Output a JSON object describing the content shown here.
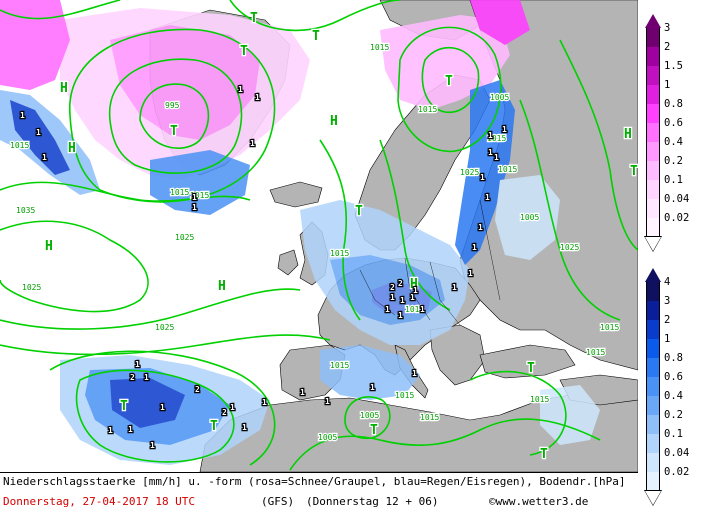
{
  "caption": {
    "description": "Niederschlagsstaerke [mm/h] u. -form (rosa=Schnee/Graupel, blau=Regen/Eisregen), Bodendr.[hPa]",
    "datetime": "Donnerstag, 27-04-2017  18 UTC",
    "model": "(GFS)",
    "run": "(Donnerstag 12 + 06)",
    "copyright": "©www.wetter3.de"
  },
  "snow_legend": {
    "levels": [
      "3",
      "2",
      "1.5",
      "1",
      "0.8",
      "0.6",
      "0.4",
      "0.2",
      "0.1",
      "0.04",
      "0.02"
    ],
    "colors": [
      "#700070",
      "#a000a0",
      "#c010c0",
      "#e020e0",
      "#ff40ff",
      "#ff70ff",
      "#ff99ff",
      "#ffbbff",
      "#ffd4ff",
      "#ffe8ff",
      "#fff4ff"
    ]
  },
  "rain_legend": {
    "levels": [
      "4",
      "3",
      "2",
      "1",
      "0.8",
      "0.6",
      "0.4",
      "0.2",
      "0.1",
      "0.04",
      "0.02"
    ],
    "colors": [
      "#101060",
      "#0a1e9a",
      "#0a3ccc",
      "#0a5aeb",
      "#2a78f2",
      "#4a92f5",
      "#6aa8f7",
      "#8ebff9",
      "#b0d4fb",
      "#cfe6fd",
      "#e6f2ff"
    ]
  },
  "map": {
    "colors": {
      "sea": "#ffffff",
      "land": "#b4b4b4",
      "isobar": "#00d000",
      "border": "#000000",
      "marker": "#00b000"
    },
    "pressure_labels": [
      "1015",
      "1015",
      "1015",
      "1015",
      "1015",
      "1015",
      "1015",
      "1015",
      "1015",
      "1015",
      "1015",
      "1015",
      "1015",
      "1025",
      "1025",
      "1025",
      "1025",
      "1025",
      "1035",
      "995",
      "1005",
      "1005",
      "1005",
      "1005",
      "1015",
      "1015"
    ],
    "markers": [
      "H",
      "H",
      "H",
      "H",
      "H",
      "H",
      "H",
      "T",
      "T",
      "T",
      "T",
      "T",
      "T",
      "T",
      "T",
      "T",
      "T",
      "T",
      "T"
    ],
    "precip_labels": [
      "1",
      "1",
      "1",
      "1",
      "1",
      "1",
      "1",
      "1",
      "1",
      "1",
      "1",
      "1",
      "1",
      "1",
      "1",
      "1",
      "1",
      "1",
      "1",
      "1",
      "1",
      "1",
      "1",
      "1",
      "2",
      "2",
      "1",
      "1",
      "2",
      "1",
      "1",
      "1",
      "1",
      "1",
      "1",
      "1",
      "1",
      "1",
      "1",
      "1",
      "2",
      "2",
      "1"
    ]
  }
}
